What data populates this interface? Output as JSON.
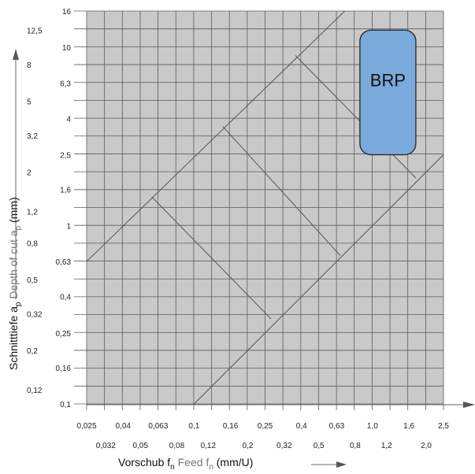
{
  "chart_data": {
    "type": "area",
    "title": "",
    "x_scale": "log",
    "y_scale": "log",
    "xlim": [
      0.025,
      2.5
    ],
    "ylim": [
      0.1,
      16
    ],
    "grid": true,
    "colors": {
      "grid_bg": "#c9c9c9",
      "grid_line": "#5c5c5c",
      "region_fill": "#7aa9dc",
      "region_stroke": "#222222"
    },
    "x_ticks_upper": [
      "0,025",
      "0,04",
      "0,063",
      "0,1",
      "0,16",
      "0,25",
      "0,4",
      "0,63",
      "1,0",
      "1,6",
      "2,5"
    ],
    "x_ticks_upper_values": [
      0.025,
      0.04,
      0.063,
      0.1,
      0.16,
      0.25,
      0.4,
      0.63,
      1.0,
      1.6,
      2.5
    ],
    "x_ticks_lower": [
      "0,032",
      "0,05",
      "0,08",
      "0,12",
      "0,2",
      "0,32",
      "0,5",
      "0,8",
      "1,2",
      "2,0"
    ],
    "x_ticks_lower_values": [
      0.032,
      0.05,
      0.08,
      0.12,
      0.2,
      0.32,
      0.5,
      0.8,
      1.2,
      2.0
    ],
    "y_ticks_right": [
      "16",
      "10",
      "6,3",
      "4",
      "2,5",
      "1,6",
      "1",
      "0,63",
      "0,4",
      "0,25",
      "0,16",
      "0,1"
    ],
    "y_ticks_right_values": [
      16,
      10,
      6.3,
      4,
      2.5,
      1.6,
      1,
      0.63,
      0.4,
      0.25,
      0.16,
      0.1
    ],
    "y_ticks_left": [
      "12,5",
      "8",
      "5",
      "3,2",
      "2",
      "1,2",
      "0,8",
      "0,5",
      "0,32",
      "0,2",
      "0,12"
    ],
    "y_ticks_left_values": [
      12.5,
      8,
      5,
      3.2,
      2,
      1.2,
      0.8,
      0.5,
      0.32,
      0.2,
      0.12
    ],
    "xlabel": {
      "main": "Vorschub f",
      "main_sub": "n",
      "grey": " Feed f",
      "grey_sub": "n",
      "unit": "  (mm/U)"
    },
    "ylabel": {
      "main": "Schnitttiefe a",
      "main_sub": "p",
      "grey": " Depth of cut a",
      "grey_sub": "p",
      "unit": " (mm)"
    },
    "diagonal_lines": [
      {
        "name": "upper-diagonal",
        "points": [
          [
            0.025,
            0.63
          ],
          [
            0.7,
            16
          ]
        ]
      },
      {
        "name": "lower-diagonal",
        "points": [
          [
            0.1,
            0.1
          ],
          [
            2.5,
            2.5
          ]
        ]
      }
    ],
    "cross_lines": [
      {
        "name": "cross-line-1",
        "points": [
          [
            0.058,
            1.45
          ],
          [
            0.27,
            0.3
          ]
        ]
      },
      {
        "name": "cross-line-2",
        "points": [
          [
            0.145,
            3.6
          ],
          [
            0.66,
            0.68
          ]
        ]
      },
      {
        "name": "cross-line-3",
        "points": [
          [
            0.37,
            9.0
          ],
          [
            1.75,
            1.85
          ]
        ]
      }
    ],
    "region": {
      "label": "BRP",
      "x_range": [
        0.85,
        1.75
      ],
      "y_range": [
        2.5,
        12.5
      ]
    }
  }
}
